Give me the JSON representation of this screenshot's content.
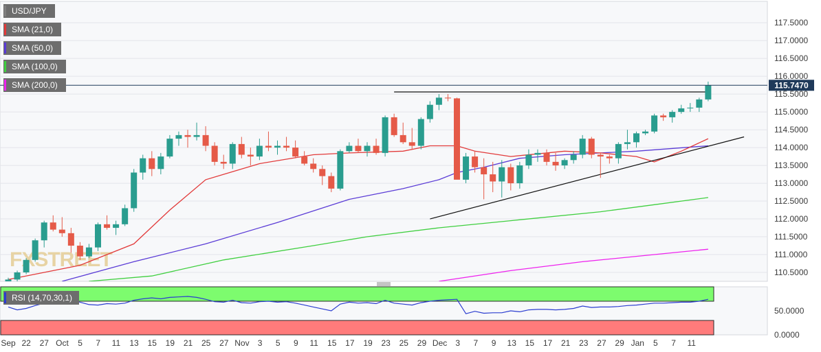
{
  "chart_data": {
    "type": "candlestick",
    "instrument": "USD/JPY",
    "price_axis": {
      "ticks": [
        110.5,
        111.0,
        111.5,
        112.0,
        112.5,
        113.0,
        113.5,
        114.0,
        114.5,
        115.0,
        115.5,
        116.0,
        116.5,
        117.0,
        117.5
      ],
      "tick_labels": [
        "110.5000",
        "111.0000",
        "111.5000",
        "112.0000",
        "112.5000",
        "113.0000",
        "113.5000",
        "114.0000",
        "114.5000",
        "115.0000",
        "115.5000",
        "116.0000",
        "116.5000",
        "117.0000",
        "117.5000"
      ],
      "range": [
        110.25,
        118.1
      ],
      "last_price": 115.747,
      "last_price_label": "115.7470"
    },
    "date_axis_labels": [
      "Sep",
      "22",
      "27",
      "Oct",
      "5",
      "7",
      "11",
      "13",
      "15",
      "19",
      "21",
      "25",
      "27",
      "Nov",
      "3",
      "5",
      "9",
      "11",
      "15",
      "17",
      "19",
      "23",
      "25",
      "29",
      "Dec",
      "3",
      "7",
      "9",
      "13",
      "15",
      "17",
      "21",
      "23",
      "27",
      "29",
      "Jan",
      "5",
      "7",
      "11"
    ],
    "indicators": [
      {
        "name": "USD/JPY",
        "color": "#7f7f7f"
      },
      {
        "name": "SMA (21,0)",
        "color": "#e23a3a"
      },
      {
        "name": "SMA (50,0)",
        "color": "#5a3bd6"
      },
      {
        "name": "SMA (100,0)",
        "color": "#3fcf3f"
      },
      {
        "name": "SMA (200,0)",
        "color": "#ee22ee"
      }
    ],
    "candles": [
      [
        110.2,
        110.35,
        110.05,
        110.3
      ],
      [
        110.3,
        110.55,
        110.25,
        110.5
      ],
      [
        110.5,
        110.9,
        110.45,
        110.85
      ],
      [
        110.85,
        111.45,
        110.8,
        111.4
      ],
      [
        111.4,
        111.95,
        111.2,
        111.9
      ],
      [
        111.9,
        112.1,
        111.65,
        111.7
      ],
      [
        111.7,
        112.05,
        111.5,
        111.6
      ],
      [
        111.6,
        111.75,
        111.05,
        111.25
      ],
      [
        111.25,
        111.35,
        110.85,
        110.95
      ],
      [
        110.95,
        111.3,
        110.9,
        111.2
      ],
      [
        111.2,
        111.9,
        111.1,
        111.85
      ],
      [
        111.85,
        112.1,
        111.7,
        111.75
      ],
      [
        111.75,
        111.95,
        111.55,
        111.85
      ],
      [
        111.85,
        112.4,
        111.8,
        112.3
      ],
      [
        112.3,
        113.4,
        112.2,
        113.3
      ],
      [
        113.3,
        113.8,
        113.1,
        113.7
      ],
      [
        113.7,
        113.9,
        113.2,
        113.4
      ],
      [
        113.4,
        113.85,
        113.25,
        113.75
      ],
      [
        113.75,
        114.35,
        113.7,
        114.25
      ],
      [
        114.25,
        114.45,
        114.05,
        114.35
      ],
      [
        114.35,
        114.5,
        114.0,
        114.3
      ],
      [
        114.3,
        114.7,
        114.2,
        114.35
      ],
      [
        114.35,
        114.6,
        113.9,
        114.05
      ],
      [
        114.05,
        114.15,
        113.5,
        113.6
      ],
      [
        113.6,
        113.8,
        113.4,
        113.55
      ],
      [
        113.55,
        114.15,
        113.4,
        114.1
      ],
      [
        114.1,
        114.3,
        113.7,
        113.8
      ],
      [
        113.8,
        114.0,
        113.5,
        113.75
      ],
      [
        113.75,
        114.25,
        113.65,
        114.05
      ],
      [
        114.05,
        114.45,
        113.9,
        114.0
      ],
      [
        114.0,
        114.2,
        113.8,
        114.05
      ],
      [
        114.05,
        114.3,
        113.9,
        114.0
      ],
      [
        114.0,
        114.2,
        113.7,
        113.75
      ],
      [
        113.75,
        113.9,
        113.5,
        113.55
      ],
      [
        113.55,
        113.7,
        113.3,
        113.4
      ],
      [
        113.4,
        113.5,
        112.95,
        113.2
      ],
      [
        113.2,
        113.3,
        112.75,
        112.85
      ],
      [
        112.85,
        113.95,
        112.8,
        113.9
      ],
      [
        113.9,
        114.15,
        113.85,
        114.05
      ],
      [
        114.05,
        114.25,
        113.85,
        113.9
      ],
      [
        113.9,
        114.15,
        113.75,
        114.05
      ],
      [
        114.05,
        114.25,
        113.8,
        113.85
      ],
      [
        113.85,
        114.9,
        113.75,
        114.85
      ],
      [
        114.85,
        114.95,
        114.3,
        114.35
      ],
      [
        114.35,
        114.7,
        114.1,
        114.15
      ],
      [
        114.15,
        114.55,
        113.95,
        114.05
      ],
      [
        114.05,
        114.85,
        113.95,
        114.8
      ],
      [
        114.8,
        115.3,
        114.7,
        115.2
      ],
      [
        115.2,
        115.5,
        115.05,
        115.4
      ],
      [
        115.4,
        115.5,
        115.3,
        115.38
      ],
      [
        115.38,
        115.4,
        113.15,
        113.1
      ],
      [
        113.1,
        113.85,
        113.0,
        113.75
      ],
      [
        113.75,
        113.9,
        113.3,
        113.45
      ],
      [
        113.45,
        113.7,
        112.55,
        113.25
      ],
      [
        113.25,
        113.6,
        112.75,
        113.05
      ],
      [
        113.05,
        113.65,
        112.6,
        113.45
      ],
      [
        113.45,
        113.55,
        112.8,
        113.0
      ],
      [
        113.0,
        113.6,
        112.85,
        113.5
      ],
      [
        113.5,
        113.95,
        113.4,
        113.8
      ],
      [
        113.8,
        113.95,
        113.6,
        113.85
      ],
      [
        113.85,
        113.95,
        113.5,
        113.6
      ],
      [
        113.6,
        113.85,
        113.35,
        113.5
      ],
      [
        113.5,
        113.7,
        113.4,
        113.65
      ],
      [
        113.65,
        113.9,
        113.55,
        113.8
      ],
      [
        113.8,
        114.35,
        113.7,
        114.25
      ],
      [
        114.25,
        114.3,
        113.7,
        113.8
      ],
      [
        113.8,
        113.85,
        113.15,
        113.75
      ],
      [
        113.75,
        113.8,
        113.55,
        113.7
      ],
      [
        113.7,
        114.15,
        113.55,
        114.1
      ],
      [
        114.1,
        114.5,
        113.95,
        114.15
      ],
      [
        114.15,
        114.45,
        114.0,
        114.4
      ],
      [
        114.4,
        114.5,
        114.35,
        114.45
      ],
      [
        114.45,
        114.95,
        114.4,
        114.9
      ],
      [
        114.9,
        114.95,
        114.75,
        114.85
      ],
      [
        114.85,
        115.05,
        114.7,
        115.0
      ],
      [
        115.0,
        115.2,
        114.95,
        115.1
      ],
      [
        115.1,
        115.25,
        115.0,
        115.12
      ],
      [
        115.12,
        115.4,
        115.0,
        115.35
      ],
      [
        115.35,
        115.85,
        115.3,
        115.747
      ]
    ],
    "sma21_points": [
      [
        0,
        110.3
      ],
      [
        8,
        110.7
      ],
      [
        14,
        111.3
      ],
      [
        18,
        112.25
      ],
      [
        22,
        113.1
      ],
      [
        28,
        113.55
      ],
      [
        34,
        113.8
      ],
      [
        38,
        113.85
      ],
      [
        44,
        113.9
      ],
      [
        47,
        114.05
      ],
      [
        50,
        114.05
      ],
      [
        52,
        113.9
      ],
      [
        56,
        113.75
      ],
      [
        62,
        113.9
      ],
      [
        66,
        113.85
      ],
      [
        70,
        113.75
      ],
      [
        72,
        113.6
      ],
      [
        75,
        113.9
      ],
      [
        78,
        114.25
      ]
    ],
    "sma50_points": [
      [
        6,
        110.25
      ],
      [
        14,
        110.8
      ],
      [
        22,
        111.3
      ],
      [
        30,
        111.9
      ],
      [
        38,
        112.55
      ],
      [
        44,
        112.85
      ],
      [
        48,
        113.1
      ],
      [
        50,
        113.3
      ],
      [
        53,
        113.45
      ],
      [
        57,
        113.7
      ],
      [
        62,
        113.8
      ],
      [
        66,
        113.85
      ],
      [
        70,
        113.9
      ],
      [
        78,
        114.05
      ]
    ],
    "sma100_points": [
      [
        9,
        110.25
      ],
      [
        16,
        110.4
      ],
      [
        24,
        110.85
      ],
      [
        34,
        111.25
      ],
      [
        40,
        111.5
      ],
      [
        48,
        111.75
      ],
      [
        56,
        111.95
      ],
      [
        66,
        112.2
      ],
      [
        72,
        112.4
      ],
      [
        78,
        112.6
      ]
    ],
    "sma200_points": [
      [
        48,
        110.25
      ],
      [
        56,
        110.55
      ],
      [
        64,
        110.8
      ],
      [
        72,
        111.0
      ],
      [
        78,
        111.15
      ]
    ],
    "resistance_line": [
      [
        43,
        115.56
      ],
      [
        78,
        115.56
      ]
    ],
    "support_line": [
      [
        47,
        112.0
      ],
      [
        82,
        114.3
      ]
    ],
    "rsi": {
      "label": "RSI (14,70,30,1)",
      "tick_labels": [
        "50.0000",
        "0.0000"
      ],
      "values": [
        58,
        52,
        55,
        61,
        66,
        70,
        72,
        71,
        68,
        63,
        62,
        65,
        64,
        66,
        72,
        75,
        77,
        75,
        78,
        79,
        80,
        78,
        74,
        69,
        68,
        72,
        67,
        66,
        69,
        70,
        68,
        69,
        66,
        62,
        58,
        54,
        50,
        64,
        68,
        66,
        67,
        65,
        72,
        66,
        64,
        62,
        67,
        70,
        72,
        73,
        74,
        44,
        49,
        45,
        46,
        46,
        50,
        48,
        52,
        53,
        53,
        52,
        53,
        55,
        60,
        57,
        58,
        58,
        59,
        61,
        62,
        64,
        66,
        66,
        67,
        68,
        68,
        70,
        74
      ],
      "overbought_band": [
        70,
        100
      ],
      "oversold_band": [
        0,
        30
      ]
    }
  }
}
